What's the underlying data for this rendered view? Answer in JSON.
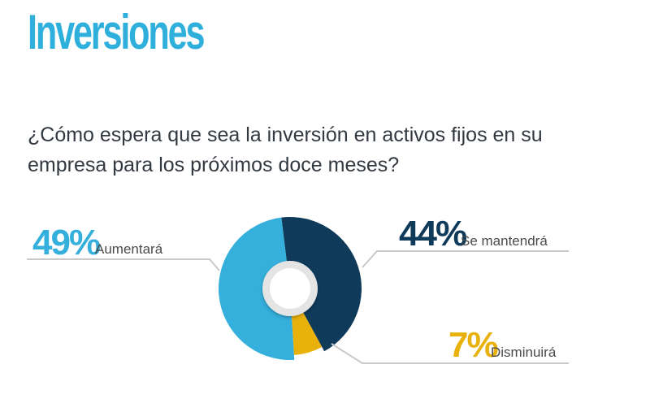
{
  "header": {
    "title": "Inversiones"
  },
  "question": "¿Cómo espera que sea la inversión en activos fijos en su empresa para los próximos doce meses?",
  "colors": {
    "title": "#2fb0dc",
    "aumentara": "#35afdc",
    "mantendra": "#0f3a5a",
    "disminuira": "#e8b10c",
    "label_text": "#4a4a4a",
    "leader": "#c9c9c9"
  },
  "chart_data": {
    "type": "pie",
    "variant": "donut",
    "slices": [
      {
        "label": "Se mantendrá",
        "value": 44,
        "value_label": "44%",
        "color": "#0f3a5a"
      },
      {
        "label": "Disminuirá",
        "value": 7,
        "value_label": "7%",
        "color": "#e8b10c"
      },
      {
        "label": "Aumentará",
        "value": 49,
        "value_label": "49%",
        "color": "#35afdc"
      }
    ]
  }
}
